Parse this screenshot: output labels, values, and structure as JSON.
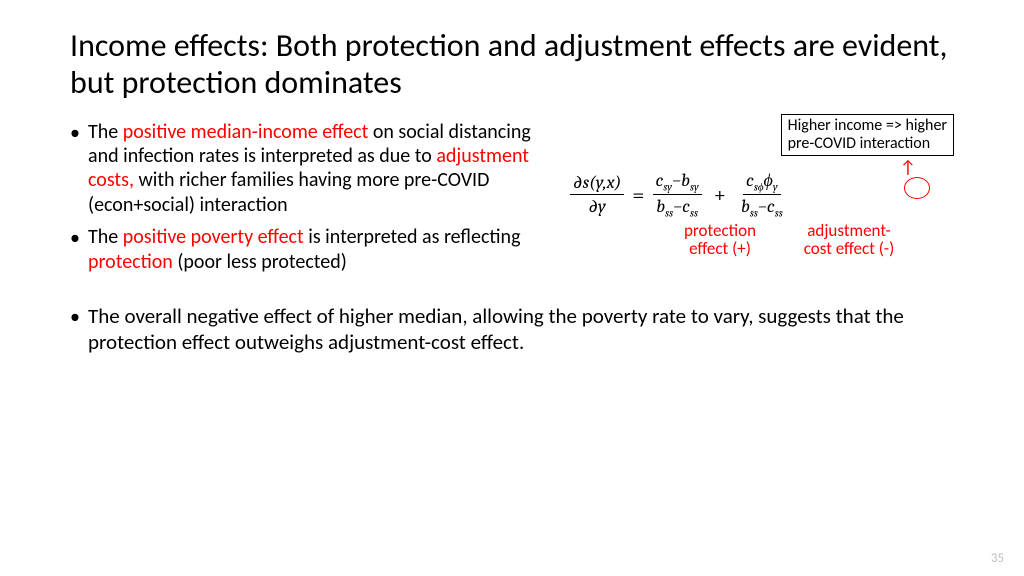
{
  "title": "Income effects: Both protection and adjustment effects are evident, but protection dominates",
  "bullets": {
    "b1_p1": "The ",
    "b1_r1": "positive median-income effect ",
    "b1_p2": "on social distancing and infection rates is interpreted as due to ",
    "b1_r2": "adjustment costs, ",
    "b1_p3": "with richer families having more pre-COVID (econ+social) interaction",
    "b2_p1": "The ",
    "b2_r1": "positive poverty effect ",
    "b2_p2": "is interpreted as reflecting ",
    "b2_r2": "protection ",
    "b2_p3": "(poor less protected)",
    "b3": "The overall negative effect of higher median, allowing the poverty rate to vary, suggests that the protection effect outweighs adjustment-cost effect."
  },
  "callout": {
    "line1": "Higher income => higher",
    "line2": "pre-COVID interaction"
  },
  "labels": {
    "protection1": "protection",
    "protection2": "effect (+)",
    "adjust1": "adjustment-",
    "adjust2": "cost effect (-)"
  },
  "page_number": "35",
  "colors": {
    "accent": "#ff0000",
    "text": "#000000",
    "pagenum": "#bfbfbf",
    "bg": "#ffffff"
  }
}
